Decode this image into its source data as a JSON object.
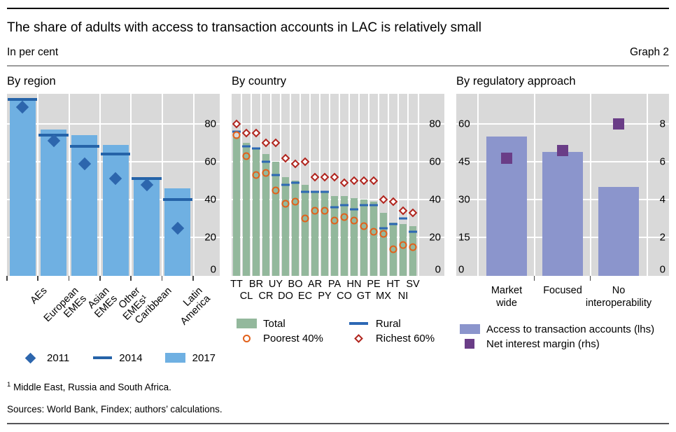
{
  "header": {
    "title": "The share of adults with access to transaction accounts in LAC is relatively small",
    "subtitle": "In per cent",
    "graph_label": "Graph 2"
  },
  "footnotes": {
    "marker": "1",
    "text": "Middle East, Russia and South Africa.",
    "sources": "Sources: World Bank, Findex; authors’ calculations."
  },
  "colors": {
    "plot_background": "#d9d9d9",
    "gridline": "#ffffff",
    "bar_2017_blue": "#6fb0e2",
    "line_2014_blue": "#2563a8",
    "diamond_2011_blue": "#2d66ad",
    "total_green": "#93b89c",
    "rural_blue": "#2d68b4",
    "poorest_orange": "#e2611b",
    "richest_red": "#b0241d",
    "access_periwinkle": "#8b95cc",
    "nim_purple": "#6a3d87"
  },
  "chart_data": [
    {
      "id": "by-region",
      "type": "bar",
      "title": "By region",
      "axis": {
        "side": "right",
        "max": 96,
        "ticks": [
          0,
          20,
          40,
          60,
          80
        ]
      },
      "categories": [
        "AEs",
        "European EMEs",
        "Asian EMEs",
        "Other EMEs¹",
        "Caribbean",
        "Latin America"
      ],
      "category_lines": [
        [
          "AEs"
        ],
        [
          "European",
          "EMEs"
        ],
        [
          "Asian",
          "EMEs"
        ],
        [
          "Other",
          "EMEs¹"
        ],
        [
          "Caribbean"
        ],
        [
          "Latin",
          "America"
        ]
      ],
      "xlabel_style": "rotated",
      "xticks": "all",
      "bar_frac": 0.84,
      "dash_frac": 0.95,
      "grid": true,
      "series": [
        {
          "name": "2011",
          "marker": "diamond",
          "color": "#2d66ad",
          "values": [
            89,
            71,
            59,
            51,
            48,
            25
          ]
        },
        {
          "name": "2014",
          "marker": "dash",
          "color": "#2563a8",
          "values": [
            93,
            74,
            68,
            64,
            51,
            40
          ]
        },
        {
          "name": "2017",
          "marker": "bar",
          "color": "#6fb0e2",
          "values": [
            93,
            77,
            74,
            69,
            52,
            46
          ]
        }
      ],
      "legend": {
        "layout": "row",
        "items": [
          "2011",
          "2014",
          "2017"
        ]
      }
    },
    {
      "id": "by-country",
      "type": "bar",
      "title": "By country",
      "axis": {
        "side": "right",
        "max": 96,
        "ticks": [
          0,
          20,
          40,
          60,
          80
        ]
      },
      "categories": [
        "TT",
        "CL",
        "BR",
        "CR",
        "UY",
        "DO",
        "BO",
        "EC",
        "AR",
        "PY",
        "PA",
        "CO",
        "HN",
        "GT",
        "PE",
        "MX",
        "HT",
        "NI",
        "SV"
      ],
      "xlabel_style": "stagger",
      "xticks": "none",
      "bar_frac": 0.68,
      "dash_frac": 0.88,
      "grid": true,
      "series": [
        {
          "name": "Total",
          "marker": "bar",
          "color": "#93b89c",
          "values": [
            73,
            70,
            67,
            64,
            60,
            52,
            50,
            48,
            44,
            44,
            42,
            42,
            41,
            40,
            39,
            33,
            28,
            27,
            26
          ]
        },
        {
          "name": "Rural",
          "marker": "dash",
          "color": "#2d68b4",
          "values": [
            76,
            68,
            67,
            60,
            53,
            48,
            49,
            44,
            44,
            44,
            36,
            37,
            35,
            37,
            37,
            25,
            27,
            30,
            23
          ]
        },
        {
          "name": "Poorest 40%",
          "marker": "circle",
          "color": "#e2611b",
          "values": [
            74,
            63,
            53,
            54,
            45,
            38,
            39,
            30,
            34,
            34,
            29,
            31,
            29,
            26,
            23,
            22,
            14,
            16,
            15
          ]
        },
        {
          "name": "Richest 60%",
          "marker": "diamond-outline",
          "color": "#b0241d",
          "values": [
            80,
            75,
            75,
            70,
            70,
            62,
            59,
            60,
            52,
            52,
            52,
            49,
            50,
            50,
            50,
            40,
            39,
            34,
            33
          ]
        }
      ],
      "legend": {
        "layout": "grid",
        "items": [
          "Total",
          "Rural",
          "Poorest 40%",
          "Richest 60%"
        ]
      }
    },
    {
      "id": "by-regulatory-approach",
      "type": "bar",
      "title": "By regulatory approach",
      "axis": {
        "side": "left",
        "max": 72,
        "ticks": [
          0,
          15,
          30,
          45,
          60
        ]
      },
      "axis_right": {
        "max": 9.6,
        "ticks": [
          0,
          2,
          4,
          6,
          8
        ]
      },
      "categories": [
        "Market wide",
        "Focused",
        "No interoperability"
      ],
      "category_lines": [
        [
          "Market",
          "wide"
        ],
        [
          "Focused"
        ],
        [
          "No",
          "interoperability"
        ]
      ],
      "xlabel_style": "stacked",
      "xticks": "inner",
      "bar_frac": 0.73,
      "grid": true,
      "series": [
        {
          "name": "Access to transaction accounts (lhs)",
          "marker": "bar",
          "color": "#8b95cc",
          "axis": "left",
          "values": [
            55,
            49,
            35
          ]
        },
        {
          "name": "Net interest margin (rhs)",
          "marker": "square",
          "color": "#6a3d87",
          "axis": "right",
          "values": [
            6.2,
            6.6,
            8
          ]
        }
      ],
      "legend": {
        "layout": "column",
        "items": [
          "Access to transaction accounts (lhs)",
          "Net interest margin (rhs)"
        ]
      }
    }
  ]
}
